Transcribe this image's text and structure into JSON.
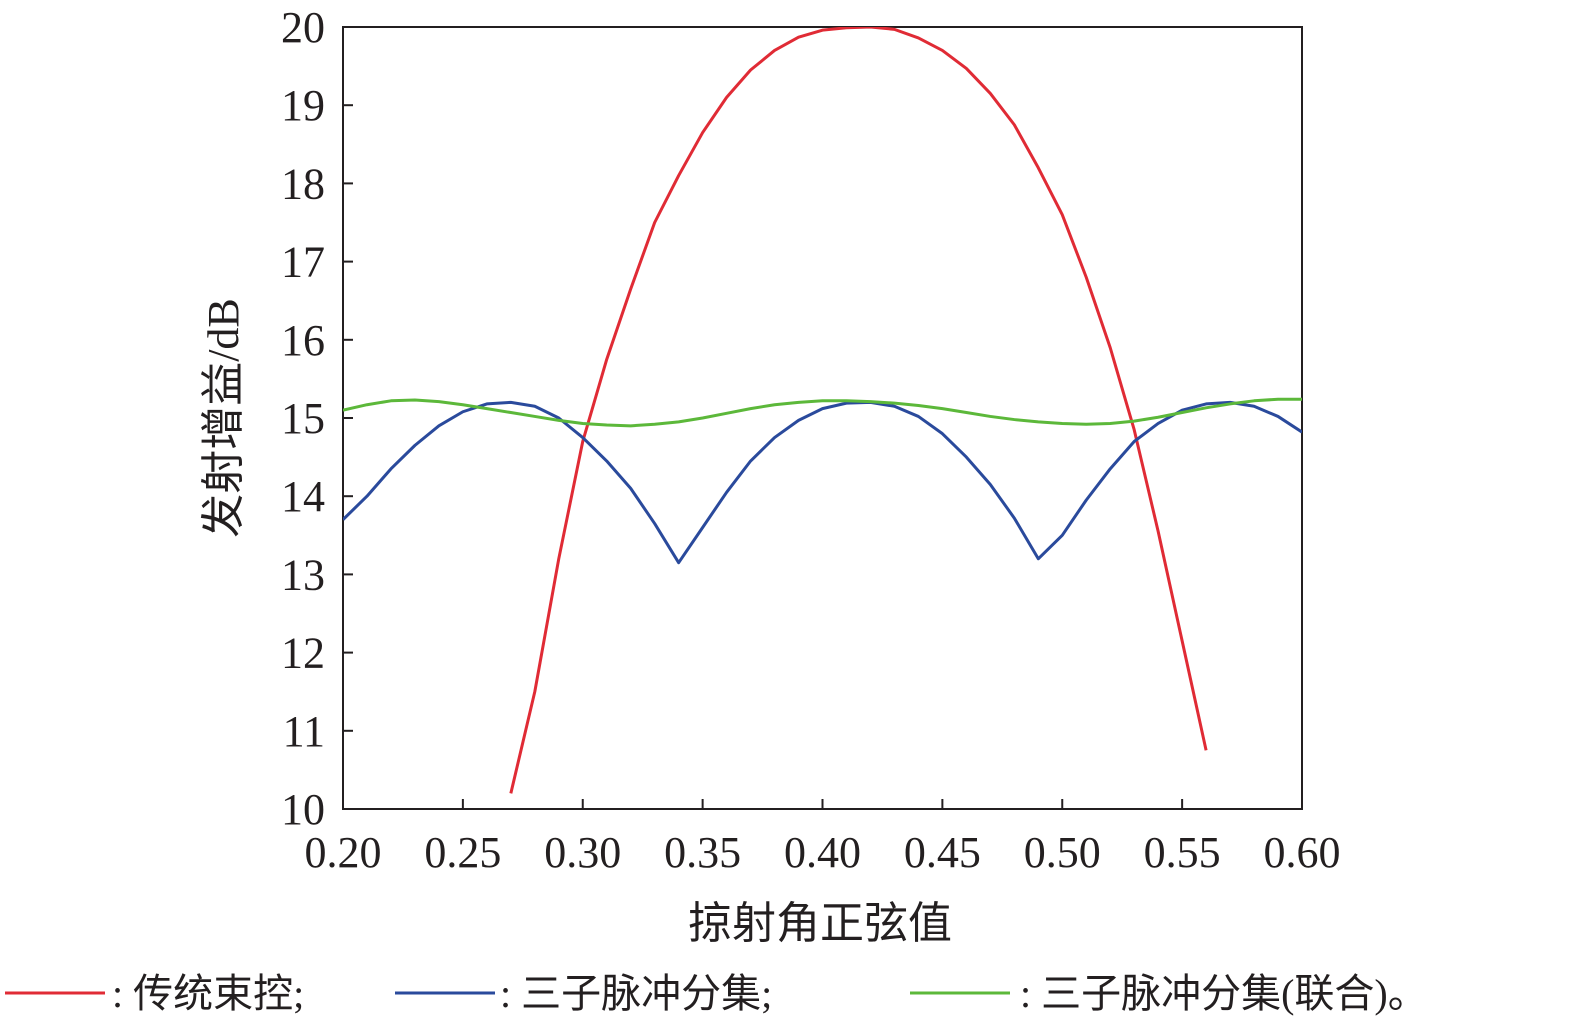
{
  "chart_data": {
    "type": "line",
    "x_label": "掠射角正弦值",
    "y_label": "发射增益/dB",
    "x": [
      0.2,
      0.21,
      0.22,
      0.23,
      0.24,
      0.25,
      0.26,
      0.27,
      0.28,
      0.29,
      0.3,
      0.31,
      0.32,
      0.33,
      0.34,
      0.35,
      0.36,
      0.37,
      0.38,
      0.39,
      0.4,
      0.41,
      0.42,
      0.43,
      0.44,
      0.45,
      0.46,
      0.47,
      0.48,
      0.49,
      0.5,
      0.51,
      0.52,
      0.53,
      0.54,
      0.55,
      0.56,
      0.57,
      0.58,
      0.59,
      0.6
    ],
    "series": [
      {
        "name": ": 传统束控;",
        "color": "#e02b35",
        "values": [
          null,
          null,
          null,
          null,
          null,
          null,
          null,
          10.2,
          11.5,
          13.2,
          14.7,
          15.75,
          16.65,
          17.5,
          18.1,
          18.65,
          19.1,
          19.45,
          19.7,
          19.87,
          19.96,
          19.99,
          20.0,
          19.97,
          19.86,
          19.7,
          19.47,
          19.15,
          18.75,
          18.2,
          17.6,
          16.8,
          15.9,
          14.85,
          13.55,
          12.15,
          10.75,
          null,
          null,
          null,
          null
        ]
      },
      {
        "name": ": 三子脉冲分集;",
        "color": "#2a4a9c",
        "values": [
          13.7,
          14.0,
          14.35,
          14.65,
          14.9,
          15.08,
          15.18,
          15.2,
          15.15,
          15.0,
          14.75,
          14.45,
          14.1,
          13.65,
          13.15,
          13.6,
          14.05,
          14.45,
          14.75,
          14.97,
          15.12,
          15.19,
          15.2,
          15.15,
          15.02,
          14.8,
          14.5,
          14.15,
          13.72,
          13.2,
          13.5,
          13.95,
          14.35,
          14.7,
          14.93,
          15.1,
          15.18,
          15.2,
          15.15,
          15.02,
          14.82
        ]
      },
      {
        "name": ": 三子脉冲分集(联合)。",
        "color": "#5cb83a",
        "values": [
          15.1,
          15.17,
          15.22,
          15.23,
          15.21,
          15.17,
          15.12,
          15.07,
          15.02,
          14.97,
          14.93,
          14.91,
          14.9,
          14.92,
          14.95,
          15.0,
          15.06,
          15.12,
          15.17,
          15.2,
          15.22,
          15.22,
          15.21,
          15.19,
          15.16,
          15.12,
          15.07,
          15.02,
          14.98,
          14.95,
          14.93,
          14.92,
          14.93,
          14.96,
          15.01,
          15.07,
          15.13,
          15.18,
          15.22,
          15.24,
          15.24
        ]
      }
    ],
    "xlim": [
      0.2,
      0.6
    ],
    "xticks": [
      {
        "value": 0.2,
        "label": "0.20"
      },
      0.25,
      {
        "value": 0.3,
        "label": "0.30"
      },
      0.35,
      {
        "value": 0.4,
        "label": "0.40"
      },
      0.45,
      {
        "value": 0.5,
        "label": "0.50"
      },
      0.55,
      {
        "value": 0.6,
        "label": "0.60"
      }
    ],
    "ylim": [
      10,
      20
    ],
    "yticks": [
      10,
      11,
      12,
      13,
      14,
      15,
      16,
      17,
      18,
      19,
      20
    ],
    "grid": false
  }
}
